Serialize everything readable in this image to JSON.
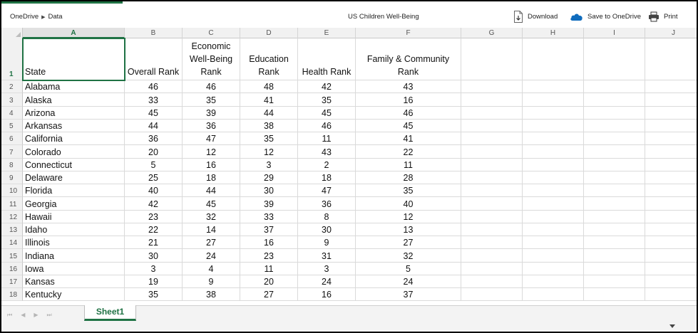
{
  "breadcrumb": {
    "root": "OneDrive",
    "folder": "Data"
  },
  "document": {
    "title": "US Children Well-Being"
  },
  "toolbar": {
    "download": "Download",
    "save_to_onedrive": "Save to OneDrive",
    "print": "Print"
  },
  "columns": [
    "A",
    "B",
    "C",
    "D",
    "E",
    "F",
    "G",
    "H",
    "I",
    "J"
  ],
  "header_row": {
    "number": "1",
    "cells": [
      "State",
      "Overall Rank",
      "Economic\nWell-Being\nRank",
      "Education\nRank",
      "Health Rank",
      "Family & Community\nRank"
    ]
  },
  "rows": [
    {
      "n": "2",
      "state": "Alabama",
      "vals": [
        "46",
        "46",
        "48",
        "42",
        "43"
      ]
    },
    {
      "n": "3",
      "state": "Alaska",
      "vals": [
        "33",
        "35",
        "41",
        "35",
        "16"
      ]
    },
    {
      "n": "4",
      "state": "Arizona",
      "vals": [
        "45",
        "39",
        "44",
        "45",
        "46"
      ]
    },
    {
      "n": "5",
      "state": "Arkansas",
      "vals": [
        "44",
        "36",
        "38",
        "46",
        "45"
      ]
    },
    {
      "n": "6",
      "state": "California",
      "vals": [
        "36",
        "47",
        "35",
        "11",
        "41"
      ]
    },
    {
      "n": "7",
      "state": "Colorado",
      "vals": [
        "20",
        "12",
        "12",
        "43",
        "22"
      ]
    },
    {
      "n": "8",
      "state": "Connecticut",
      "vals": [
        "5",
        "16",
        "3",
        "2",
        "11"
      ]
    },
    {
      "n": "9",
      "state": "Delaware",
      "vals": [
        "25",
        "18",
        "29",
        "18",
        "28"
      ]
    },
    {
      "n": "10",
      "state": "Florida",
      "vals": [
        "40",
        "44",
        "30",
        "47",
        "35"
      ]
    },
    {
      "n": "11",
      "state": "Georgia",
      "vals": [
        "42",
        "45",
        "39",
        "36",
        "40"
      ]
    },
    {
      "n": "12",
      "state": "Hawaii",
      "vals": [
        "23",
        "32",
        "33",
        "8",
        "12"
      ]
    },
    {
      "n": "13",
      "state": "Idaho",
      "vals": [
        "22",
        "14",
        "37",
        "30",
        "13"
      ]
    },
    {
      "n": "14",
      "state": "Illinois",
      "vals": [
        "21",
        "27",
        "16",
        "9",
        "27"
      ]
    },
    {
      "n": "15",
      "state": "Indiana",
      "vals": [
        "30",
        "24",
        "23",
        "31",
        "32"
      ]
    },
    {
      "n": "16",
      "state": "Iowa",
      "vals": [
        "3",
        "4",
        "11",
        "3",
        "5"
      ]
    },
    {
      "n": "17",
      "state": "Kansas",
      "vals": [
        "19",
        "9",
        "20",
        "24",
        "24"
      ]
    },
    {
      "n": "18",
      "state": "Kentucky",
      "vals": [
        "35",
        "38",
        "27",
        "16",
        "37"
      ]
    }
  ],
  "sheets": [
    {
      "label": "Sheet1",
      "active": true
    }
  ],
  "colors": {
    "accent": "#1f7244",
    "onedrive_blue": "#0f6cbd"
  }
}
